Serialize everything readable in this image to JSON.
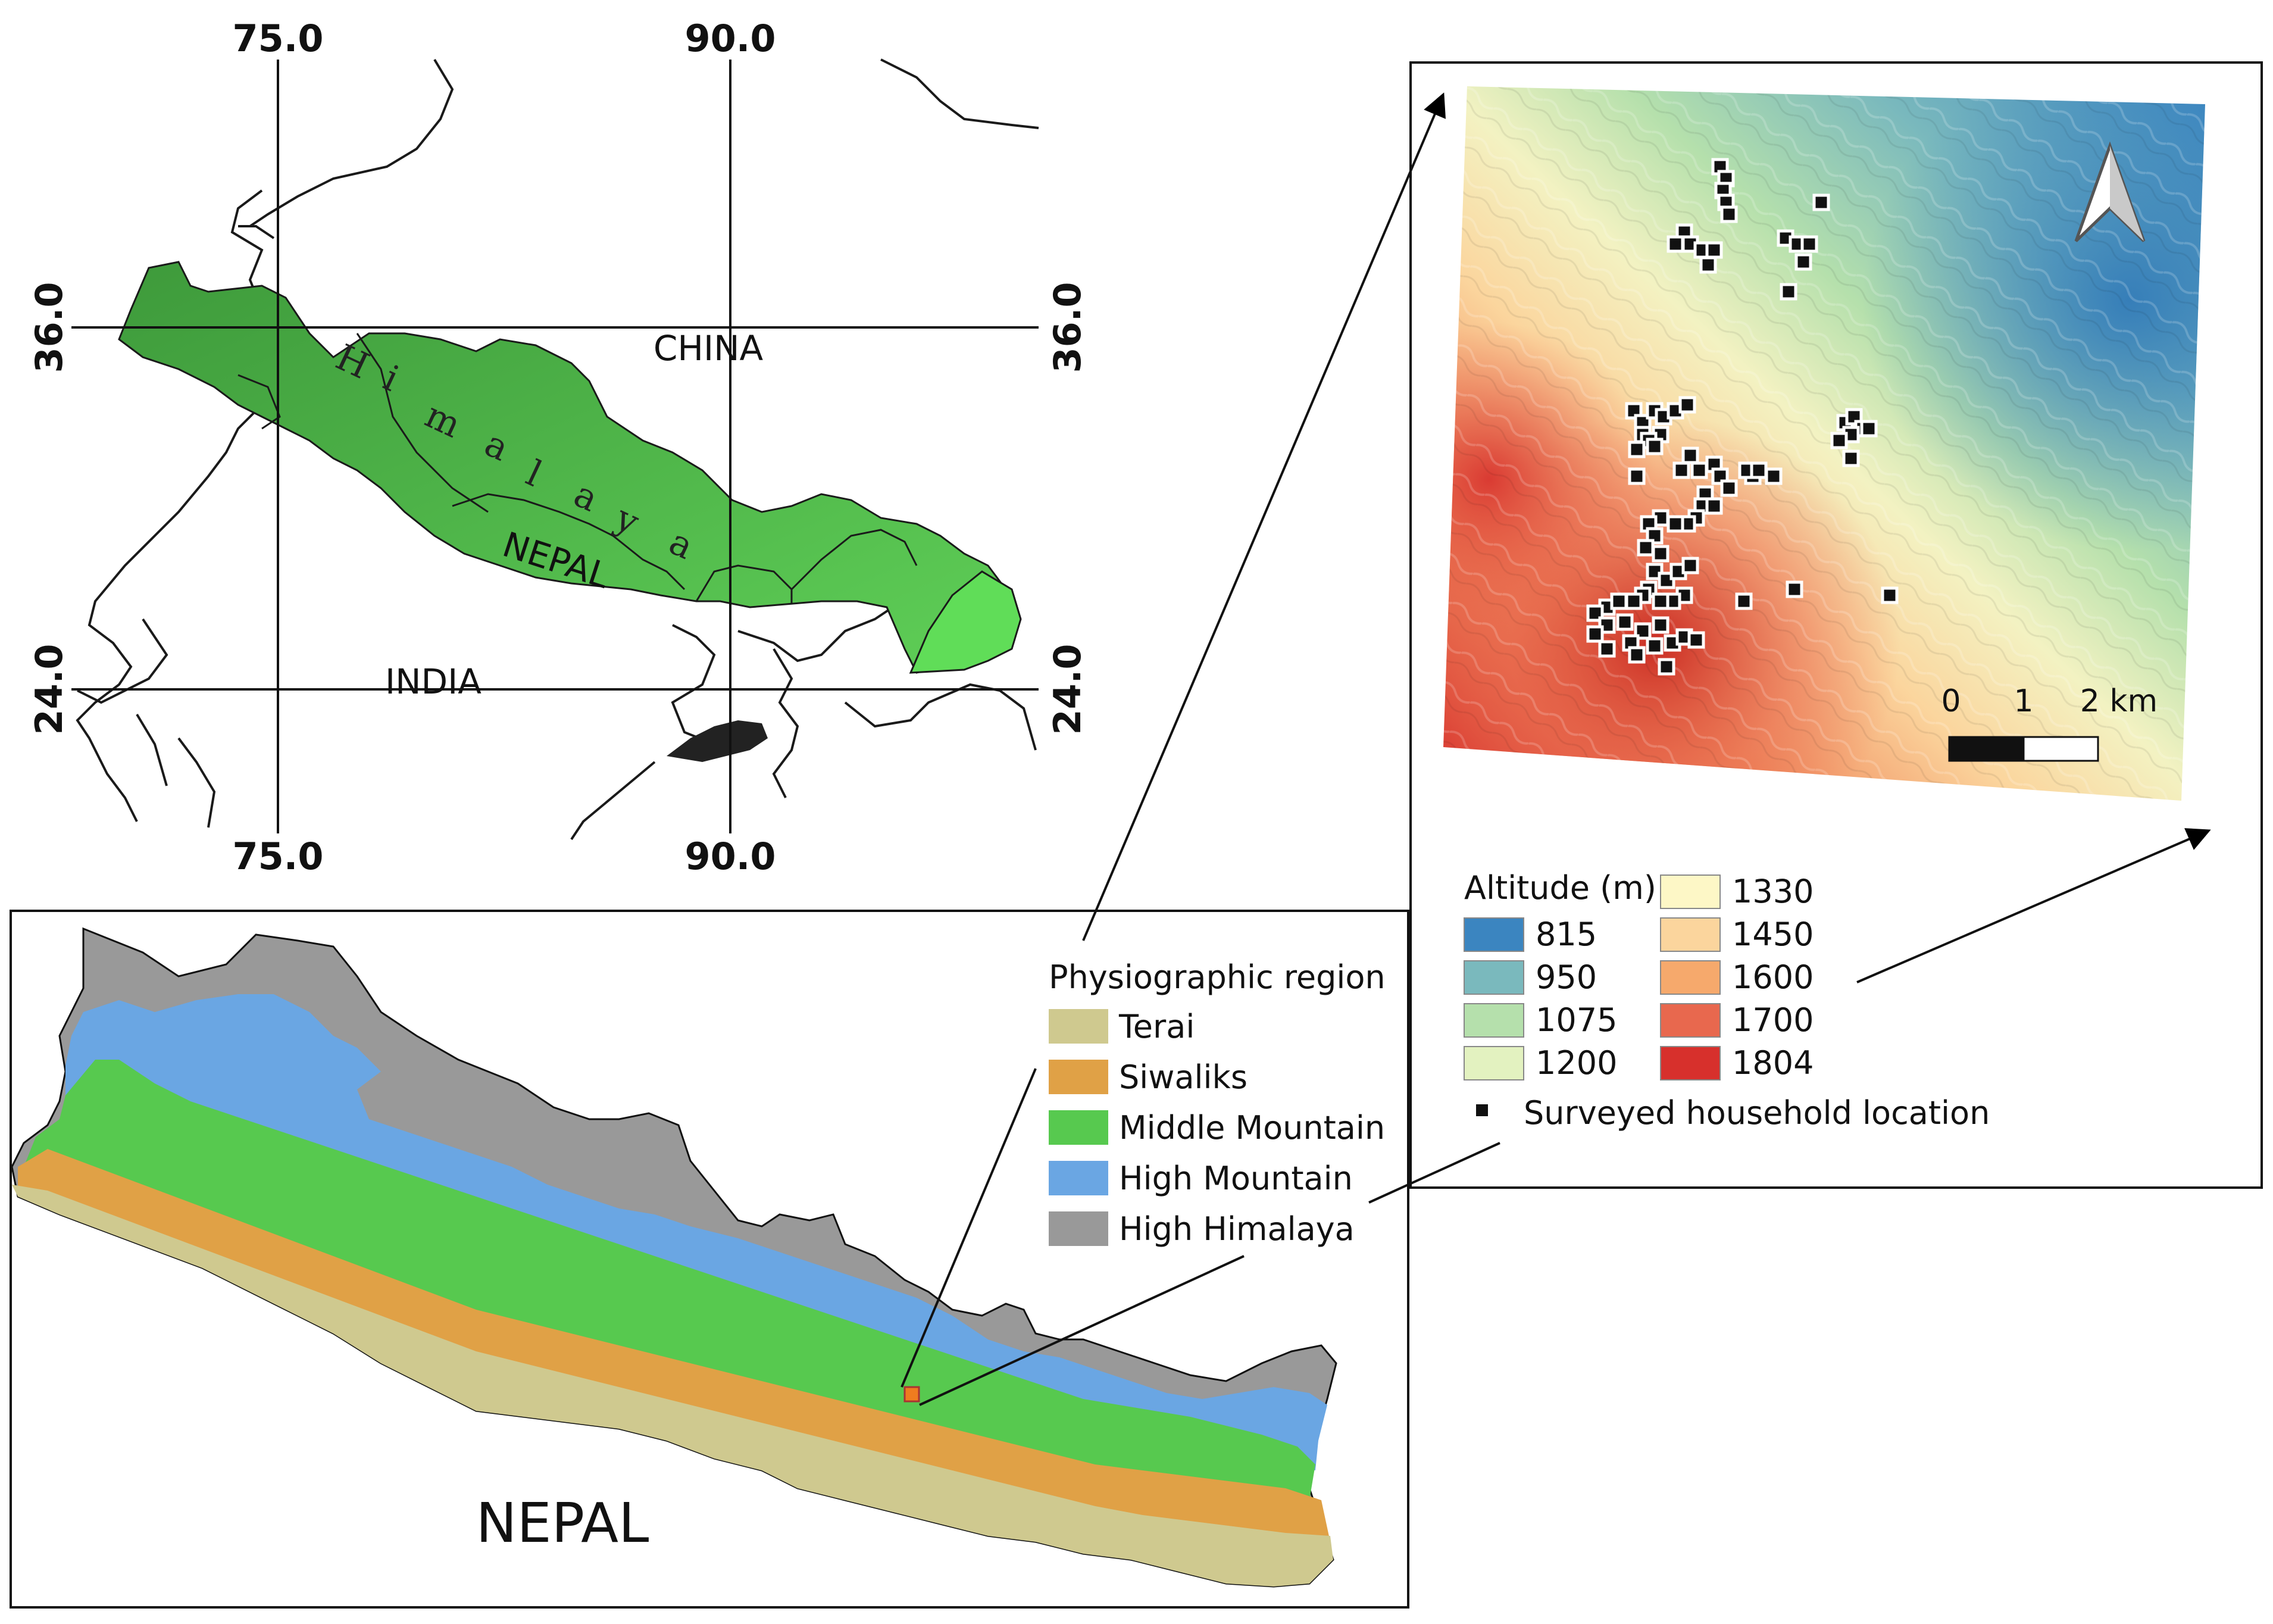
{
  "overview_map": {
    "lon_labels": [
      "75.0",
      "90.0"
    ],
    "lat_labels": [
      "36.0",
      "24.0"
    ],
    "place_labels": {
      "china": "CHINA",
      "india": "INDIA",
      "nepal": "NEPAL"
    },
    "range_letters": [
      "H",
      "i",
      "m",
      "a",
      "l",
      "a",
      "y",
      "a"
    ],
    "colors": {
      "himalaya_dark": "#3e9a3b",
      "himalaya_light": "#5fcf57",
      "border": "#1a1a1a"
    }
  },
  "nepal_map": {
    "title": "NEPAL",
    "legend_title": "Physiographic region",
    "regions": [
      {
        "label": "Terai",
        "color": "#cfc98f"
      },
      {
        "label": "Siwaliks",
        "color": "#e0a146"
      },
      {
        "label": "Middle Mountain",
        "color": "#57c94f"
      },
      {
        "label": "High Mountain",
        "color": "#6aa6e3"
      },
      {
        "label": "High Himalaya",
        "color": "#999999"
      }
    ],
    "study_area_color": "#ef7c1f"
  },
  "study_area_map": {
    "altitude_title": "Altitude (m)",
    "altitude_classes": [
      {
        "label": "815",
        "color": "#3b85c0"
      },
      {
        "label": "950",
        "color": "#7ab9bd"
      },
      {
        "label": "1075",
        "color": "#b5e0ac"
      },
      {
        "label": "1200",
        "color": "#e3f2c0"
      },
      {
        "label": "1330",
        "color": "#fdf7c6"
      },
      {
        "label": "1450",
        "color": "#fbd59d"
      },
      {
        "label": "1600",
        "color": "#f6a96c"
      },
      {
        "label": "1700",
        "color": "#e8684e"
      },
      {
        "label": "1804",
        "color": "#d7302c"
      }
    ],
    "household_label": "Surveyed household location",
    "scale_bar": {
      "labels": [
        "0",
        "1",
        "2 km"
      ]
    },
    "north_arrow": "north-arrow-icon"
  }
}
